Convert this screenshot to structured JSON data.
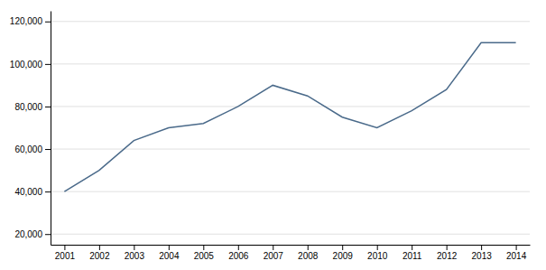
{
  "chart_data": {
    "type": "line",
    "x": [
      2001,
      2002,
      2003,
      2004,
      2005,
      2006,
      2007,
      2008,
      2009,
      2010,
      2011,
      2012,
      2013,
      2014
    ],
    "values": [
      40000,
      50000,
      64000,
      70000,
      72000,
      80000,
      90000,
      85000,
      75000,
      70000,
      78000,
      88000,
      110000,
      110000
    ],
    "color": "#4a6a8a",
    "xlim": [
      2000.6,
      2014.4
    ],
    "xticks": [
      2001,
      2002,
      2003,
      2004,
      2005,
      2006,
      2007,
      2008,
      2009,
      2010,
      2011,
      2012,
      2013,
      2014
    ],
    "ylim": [
      15000,
      125000
    ],
    "yticks": [
      {
        "value": 20000,
        "label": "20,000"
      },
      {
        "value": 40000,
        "label": "40,000"
      },
      {
        "value": 60000,
        "label": "60,000"
      },
      {
        "value": 80000,
        "label": "80,000"
      },
      {
        "value": 100000,
        "label": "100,000"
      },
      {
        "value": 120000,
        "label": "120,000"
      }
    ],
    "grid": true
  }
}
